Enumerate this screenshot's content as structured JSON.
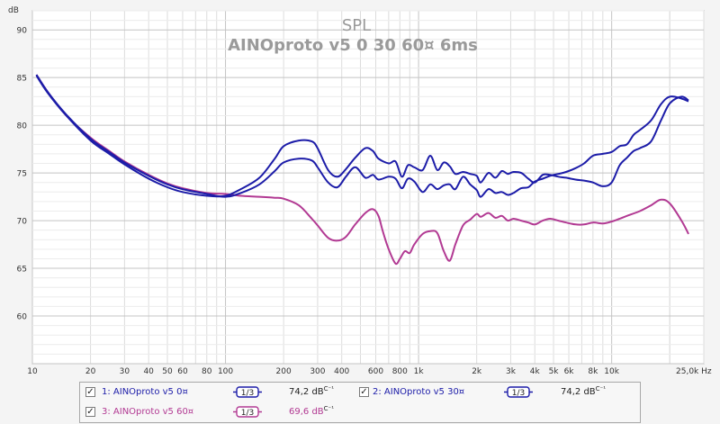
{
  "chart_data": {
    "type": "line",
    "title": "SPL",
    "subtitle": "AINOproto v5 0 30 60¤ 6ms",
    "ylabel": "dB",
    "xunit": "Hz",
    "xscale": "log",
    "xlim": [
      10,
      30000
    ],
    "ylim": [
      55,
      92
    ],
    "y_ticks": [
      "90",
      "85",
      "80",
      "75",
      "70",
      "65",
      "60"
    ],
    "x_ticks": [
      "10",
      "20",
      "30",
      "40",
      "50",
      "60",
      "80",
      "100",
      "200",
      "300",
      "400",
      "600",
      "800",
      "1k",
      "2k",
      "3k",
      "4k",
      "5k",
      "6k",
      "8k",
      "10k",
      "25,0k Hz"
    ],
    "grid": true,
    "series": [
      {
        "name": "1: AINOproto v5 0¤",
        "color": "#1c1ca8",
        "x": [
          10.5,
          12,
          15,
          20,
          25,
          30,
          40,
          50,
          60,
          80,
          100,
          120,
          150,
          180,
          200,
          240,
          280,
          300,
          340,
          380,
          420,
          470,
          530,
          580,
          620,
          700,
          760,
          820,
          880,
          950,
          1050,
          1150,
          1250,
          1350,
          1450,
          1550,
          1700,
          1850,
          2000,
          2100,
          2300,
          2500,
          2700,
          2900,
          3100,
          3400,
          3700,
          4000,
          4400,
          4800,
          5300,
          5800,
          6500,
          7200,
          8000,
          9000,
          10000,
          11000,
          12000,
          13000,
          14000,
          16000,
          18000,
          20000,
          23000,
          25000
        ],
        "y": [
          85.2,
          83.4,
          81.0,
          78.4,
          77.0,
          75.9,
          74.4,
          73.5,
          73.0,
          72.6,
          72.6,
          73.3,
          74.5,
          76.5,
          77.8,
          78.4,
          78.3,
          77.6,
          75.3,
          74.6,
          75.4,
          76.6,
          77.6,
          77.3,
          76.5,
          76.0,
          76.2,
          74.6,
          75.8,
          75.6,
          75.3,
          76.8,
          75.3,
          76.1,
          75.7,
          74.9,
          75.1,
          74.9,
          74.7,
          74.0,
          75.0,
          74.5,
          75.2,
          74.9,
          75.1,
          75.0,
          74.4,
          74.0,
          74.8,
          74.8,
          74.6,
          74.5,
          74.3,
          74.2,
          74.0,
          73.6,
          74.0,
          75.8,
          76.6,
          77.3,
          77.6,
          78.3,
          80.5,
          82.3,
          83.0,
          82.6
        ]
      },
      {
        "name": "2: AINOproto v5 30¤",
        "color": "#1c1ca8",
        "x": [
          10.5,
          12,
          15,
          20,
          25,
          30,
          40,
          50,
          60,
          80,
          100,
          120,
          150,
          180,
          200,
          240,
          280,
          300,
          340,
          380,
          420,
          470,
          530,
          580,
          620,
          700,
          760,
          820,
          880,
          950,
          1050,
          1150,
          1250,
          1350,
          1450,
          1550,
          1700,
          1850,
          2000,
          2100,
          2300,
          2500,
          2700,
          2900,
          3100,
          3400,
          3700,
          4000,
          4400,
          4800,
          5300,
          5800,
          6500,
          7200,
          8000,
          9000,
          10000,
          11000,
          12000,
          13000,
          14000,
          16000,
          18000,
          20000,
          23000,
          25000
        ],
        "y": [
          85.3,
          83.5,
          81.1,
          78.6,
          77.2,
          76.1,
          74.7,
          73.8,
          73.3,
          72.8,
          72.5,
          72.9,
          73.8,
          75.2,
          76.1,
          76.5,
          76.3,
          75.6,
          74.0,
          73.5,
          74.6,
          75.6,
          74.5,
          74.8,
          74.3,
          74.6,
          74.4,
          73.4,
          74.4,
          74.1,
          73.0,
          73.8,
          73.3,
          73.7,
          73.8,
          73.3,
          74.6,
          73.8,
          73.2,
          72.5,
          73.3,
          72.9,
          73.0,
          72.7,
          72.9,
          73.4,
          73.5,
          74.1,
          74.4,
          74.7,
          74.9,
          75.1,
          75.5,
          76.0,
          76.8,
          77.0,
          77.2,
          77.8,
          78.0,
          79.0,
          79.5,
          80.5,
          82.2,
          83.0,
          82.8,
          82.5
        ]
      },
      {
        "name": "3: AINOproto v5 60¤",
        "color": "#b23a93",
        "x": [
          10.5,
          12,
          15,
          20,
          25,
          30,
          40,
          50,
          60,
          80,
          100,
          120,
          150,
          180,
          200,
          240,
          280,
          300,
          340,
          380,
          420,
          470,
          530,
          580,
          620,
          650,
          700,
          760,
          800,
          850,
          900,
          950,
          1050,
          1150,
          1250,
          1350,
          1450,
          1550,
          1700,
          1850,
          2000,
          2100,
          2300,
          2500,
          2700,
          2900,
          3100,
          3400,
          3700,
          4000,
          4400,
          4800,
          5300,
          5800,
          6500,
          7200,
          8000,
          9000,
          10000,
          11000,
          12000,
          14000,
          16000,
          18000,
          20000,
          23000,
          25000
        ],
        "y": [
          85.3,
          83.5,
          81.0,
          78.7,
          77.3,
          76.2,
          74.8,
          73.9,
          73.4,
          72.9,
          72.8,
          72.6,
          72.5,
          72.4,
          72.3,
          71.6,
          70.2,
          69.5,
          68.2,
          67.9,
          68.3,
          69.6,
          70.8,
          71.2,
          70.5,
          69.0,
          67.0,
          65.5,
          66.0,
          66.8,
          66.6,
          67.5,
          68.6,
          68.9,
          68.7,
          66.8,
          65.8,
          67.5,
          69.5,
          70.1,
          70.7,
          70.4,
          70.8,
          70.3,
          70.5,
          70.0,
          70.2,
          70.0,
          69.8,
          69.6,
          70.0,
          70.2,
          70.0,
          69.8,
          69.6,
          69.6,
          69.8,
          69.7,
          69.9,
          70.2,
          70.5,
          71.0,
          71.6,
          72.2,
          71.8,
          70.0,
          68.6
        ]
      }
    ]
  },
  "legend": {
    "items": [
      {
        "label": "1: AINOproto v5 0¤",
        "smoothing": "1/3",
        "value": "74,2 dB",
        "unit_sup": "C⁻¹",
        "color": "#1c1ca8",
        "checked": "✓"
      },
      {
        "label": "2: AINOproto v5 30¤",
        "smoothing": "1/3",
        "value": "74,2 dB",
        "unit_sup": "C⁻¹",
        "color": "#1c1ca8",
        "checked": "✓"
      },
      {
        "label": "3: AINOproto v5 60¤",
        "smoothing": "1/3",
        "value": "69,6 dB",
        "unit_sup": "C⁻¹",
        "color": "#b23a93",
        "checked": "✓"
      }
    ]
  }
}
